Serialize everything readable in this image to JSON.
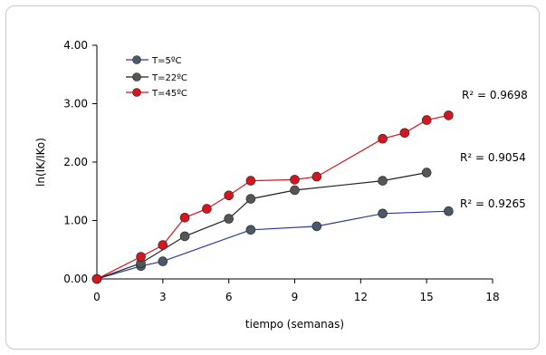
{
  "chart_data": {
    "type": "line",
    "xlabel": "tiempo (semanas)",
    "ylabel": "ln(IK/IKo)",
    "xlim": [
      0,
      18
    ],
    "ylim": [
      0,
      4
    ],
    "xticks": [
      "0",
      "3",
      "6",
      "9",
      "12",
      "15",
      "18"
    ],
    "yticks": [
      "0.00",
      "1.00",
      "2.00",
      "3.00",
      "4.00"
    ],
    "grid": false,
    "legend_position": "top-left",
    "series": [
      {
        "name": "T=5ºC",
        "line_color": "#2e3a9e",
        "marker_color": "#4a5868",
        "x": [
          0,
          2,
          3,
          7,
          10,
          13,
          16
        ],
        "y": [
          0.0,
          0.22,
          0.3,
          0.84,
          0.9,
          1.12,
          1.16
        ],
        "r2": "R² = 0.9265"
      },
      {
        "name": "T=22ºC",
        "line_color": "#222222",
        "marker_color": "#555555",
        "x": [
          0,
          2,
          4,
          6,
          7,
          9,
          13,
          15
        ],
        "y": [
          0.0,
          0.27,
          0.73,
          1.03,
          1.37,
          1.52,
          1.68,
          1.82
        ],
        "r2": "R² = 0.9054"
      },
      {
        "name": "T=45ºC",
        "line_color": "#d4161e",
        "marker_color": "#d4161e",
        "x": [
          0,
          2,
          3,
          4,
          5,
          6,
          7,
          9,
          10,
          13,
          14,
          15,
          16
        ],
        "y": [
          0.0,
          0.38,
          0.58,
          1.05,
          1.2,
          1.43,
          1.68,
          1.7,
          1.75,
          2.4,
          2.5,
          2.72,
          2.8
        ],
        "r2": "R² = 0.9698"
      }
    ]
  }
}
